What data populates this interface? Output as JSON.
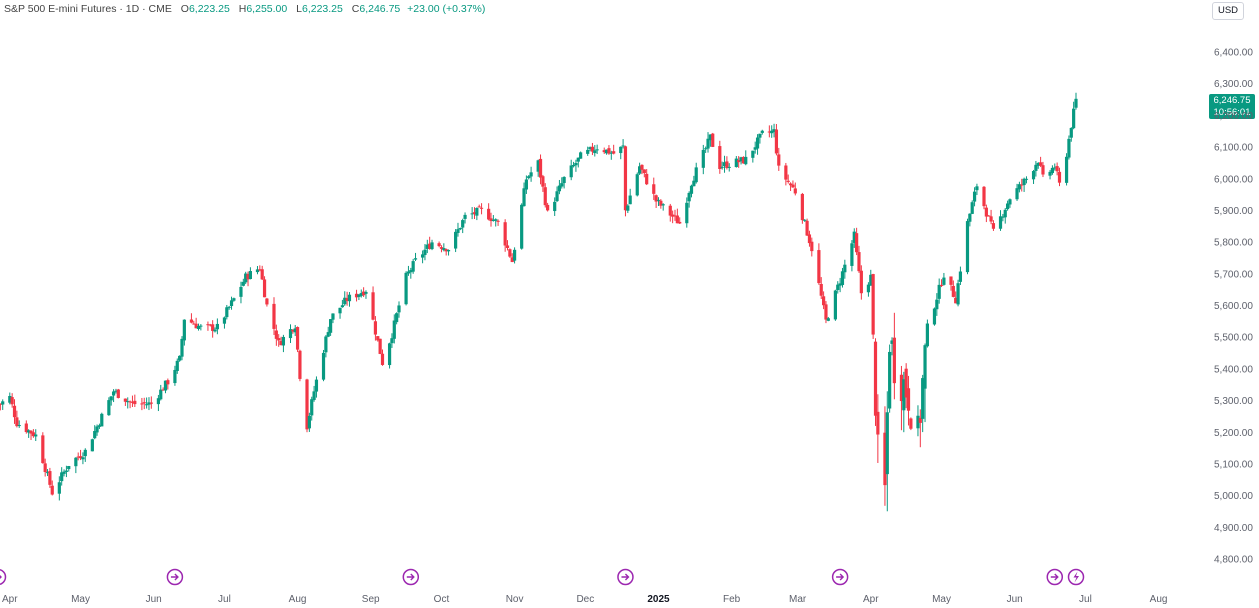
{
  "header": {
    "symbol_text": "S&P 500 E-mini Futures · 1D · CME",
    "open_label": "O",
    "open_value": "6,223.25",
    "high_label": "H",
    "high_value": "6,255.00",
    "low_label": "L",
    "low_value": "6,223.25",
    "close_label": "C",
    "close_value": "6,246.75",
    "change": "+23.00 (+0.37%)"
  },
  "currency": "USD",
  "last_price": {
    "price": "6,246.75",
    "countdown": "10:56:01"
  },
  "colors": {
    "up": "#089981",
    "down": "#f23645",
    "event": "#9c27b0"
  },
  "chart_data": {
    "type": "candlestick",
    "ylim": [
      4800,
      6420
    ],
    "yticks": [
      "6,400.00",
      "6,300.00",
      "6,200.00",
      "6,100.00",
      "6,000.00",
      "5,900.00",
      "5,800.00",
      "5,700.00",
      "5,600.00",
      "5,500.00",
      "5,400.00",
      "5,300.00",
      "5,200.00",
      "5,100.00",
      "5,000.00",
      "4,900.00",
      "4,800.00"
    ],
    "ytick_values": [
      6400,
      6300,
      6200,
      6100,
      6000,
      5900,
      5800,
      5700,
      5600,
      5500,
      5400,
      5300,
      5200,
      5100,
      5000,
      4900,
      4800
    ],
    "xticks": [
      "Apr",
      "May",
      "Jun",
      "Jul",
      "Aug",
      "Sep",
      "Oct",
      "Nov",
      "Dec",
      "2025",
      "Feb",
      "Mar",
      "Apr",
      "May",
      "Jun",
      "Jul",
      "Aug"
    ],
    "xtick_bold": [
      false,
      false,
      false,
      false,
      false,
      false,
      false,
      false,
      false,
      true,
      false,
      false,
      false,
      false,
      false,
      false,
      false
    ],
    "period": "2024-03-27 to 2025-06-27",
    "close_path": [
      {
        "date": "2024-03-28",
        "close": 5290
      },
      {
        "date": "2024-04-01",
        "close": 5310
      },
      {
        "date": "2024-04-04",
        "close": 5230
      },
      {
        "date": "2024-04-12",
        "close": 5190
      },
      {
        "date": "2024-04-19",
        "close": 5010
      },
      {
        "date": "2024-04-26",
        "close": 5100
      },
      {
        "date": "2024-05-03",
        "close": 5140
      },
      {
        "date": "2024-05-10",
        "close": 5250
      },
      {
        "date": "2024-05-15",
        "close": 5330
      },
      {
        "date": "2024-05-23",
        "close": 5290
      },
      {
        "date": "2024-05-31",
        "close": 5290
      },
      {
        "date": "2024-06-07",
        "close": 5360
      },
      {
        "date": "2024-06-12",
        "close": 5430
      },
      {
        "date": "2024-06-14",
        "close": 5560
      },
      {
        "date": "2024-06-21",
        "close": 5530
      },
      {
        "date": "2024-06-28",
        "close": 5530
      },
      {
        "date": "2024-07-05",
        "close": 5620
      },
      {
        "date": "2024-07-10",
        "close": 5690
      },
      {
        "date": "2024-07-16",
        "close": 5720
      },
      {
        "date": "2024-07-19",
        "close": 5600
      },
      {
        "date": "2024-07-24",
        "close": 5480
      },
      {
        "date": "2024-07-31",
        "close": 5540
      },
      {
        "date": "2024-08-02",
        "close": 5380
      },
      {
        "date": "2024-08-05",
        "close": 5220
      },
      {
        "date": "2024-08-08",
        "close": 5330
      },
      {
        "date": "2024-08-15",
        "close": 5560
      },
      {
        "date": "2024-08-22",
        "close": 5620
      },
      {
        "date": "2024-08-30",
        "close": 5650
      },
      {
        "date": "2024-09-06",
        "close": 5420
      },
      {
        "date": "2024-09-10",
        "close": 5510
      },
      {
        "date": "2024-09-16",
        "close": 5690
      },
      {
        "date": "2024-09-20",
        "close": 5740
      },
      {
        "date": "2024-09-27",
        "close": 5800
      },
      {
        "date": "2024-10-04",
        "close": 5780
      },
      {
        "date": "2024-10-11",
        "close": 5880
      },
      {
        "date": "2024-10-18",
        "close": 5900
      },
      {
        "date": "2024-10-25",
        "close": 5860
      },
      {
        "date": "2024-10-31",
        "close": 5740
      },
      {
        "date": "2024-11-06",
        "close": 6000
      },
      {
        "date": "2024-11-11",
        "close": 6050
      },
      {
        "date": "2024-11-15",
        "close": 5890
      },
      {
        "date": "2024-11-22",
        "close": 6000
      },
      {
        "date": "2024-11-29",
        "close": 6070
      },
      {
        "date": "2024-12-06",
        "close": 6100
      },
      {
        "date": "2024-12-13",
        "close": 6080
      },
      {
        "date": "2024-12-17",
        "close": 6100
      },
      {
        "date": "2024-12-18",
        "close": 5900
      },
      {
        "date": "2024-12-24",
        "close": 6040
      },
      {
        "date": "2024-12-31",
        "close": 5930
      },
      {
        "date": "2025-01-10",
        "close": 5860
      },
      {
        "date": "2025-01-15",
        "close": 5990
      },
      {
        "date": "2025-01-23",
        "close": 6130
      },
      {
        "date": "2025-01-27",
        "close": 6040
      },
      {
        "date": "2025-02-07",
        "close": 6060
      },
      {
        "date": "2025-02-14",
        "close": 6140
      },
      {
        "date": "2025-02-19",
        "close": 6150
      },
      {
        "date": "2025-02-21",
        "close": 6030
      },
      {
        "date": "2025-02-28",
        "close": 5960
      },
      {
        "date": "2025-03-07",
        "close": 5780
      },
      {
        "date": "2025-03-13",
        "close": 5550
      },
      {
        "date": "2025-03-19",
        "close": 5680
      },
      {
        "date": "2025-03-25",
        "close": 5820
      },
      {
        "date": "2025-03-28",
        "close": 5640
      },
      {
        "date": "2025-04-01",
        "close": 5690
      },
      {
        "date": "2025-04-04",
        "close": 5120
      },
      {
        "date": "2025-04-07",
        "close": 5010
      },
      {
        "date": "2025-04-09",
        "close": 5500
      },
      {
        "date": "2025-04-11",
        "close": 5420
      },
      {
        "date": "2025-04-17",
        "close": 5320
      },
      {
        "date": "2025-04-21",
        "close": 5180
      },
      {
        "date": "2025-04-25",
        "close": 5530
      },
      {
        "date": "2025-05-02",
        "close": 5700
      },
      {
        "date": "2025-05-07",
        "close": 5620
      },
      {
        "date": "2025-05-12",
        "close": 5860
      },
      {
        "date": "2025-05-16",
        "close": 5980
      },
      {
        "date": "2025-05-23",
        "close": 5830
      },
      {
        "date": "2025-05-30",
        "close": 5940
      },
      {
        "date": "2025-06-06",
        "close": 6000
      },
      {
        "date": "2025-06-11",
        "close": 6060
      },
      {
        "date": "2025-06-13",
        "close": 6000
      },
      {
        "date": "2025-06-18",
        "close": 6040
      },
      {
        "date": "2025-06-20",
        "close": 5980
      },
      {
        "date": "2025-06-23",
        "close": 6080
      },
      {
        "date": "2025-06-25",
        "close": 6170
      },
      {
        "date": "2025-06-27",
        "close": 6246.75
      }
    ]
  }
}
